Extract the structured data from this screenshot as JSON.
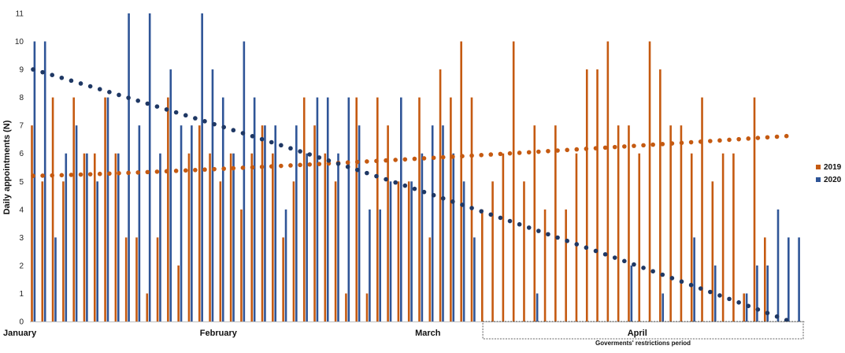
{
  "chart_data": {
    "type": "bar",
    "ylabel": "Daily appointments (N)",
    "ylim": [
      0,
      11
    ],
    "yticks": [
      "0",
      "1",
      "2",
      "3",
      "4",
      "5",
      "6",
      "7",
      "8",
      "9",
      "10",
      "11"
    ],
    "grid": false,
    "legend_placement": "right",
    "months": [
      {
        "label": "January",
        "day": 0
      },
      {
        "label": "February",
        "day": 18
      },
      {
        "label": "March",
        "day": 38
      },
      {
        "label": "April",
        "day": 58
      }
    ],
    "annotation": {
      "label": "Goverments' restrictions period",
      "from_day": 44,
      "to_day": 74
    },
    "series": [
      {
        "name": "2019",
        "color": "#C55A11",
        "values": [
          7,
          5,
          8,
          5,
          8,
          6,
          6,
          8,
          6,
          3,
          3,
          1,
          3,
          8,
          2,
          6,
          7,
          6,
          5,
          6,
          4,
          6,
          7,
          6,
          3,
          5,
          8,
          7,
          6,
          5,
          1,
          8,
          1,
          8,
          7,
          5,
          5,
          8,
          3,
          9,
          8,
          10,
          8,
          4,
          5,
          6,
          10,
          5,
          7,
          4,
          7,
          4,
          6,
          9,
          9,
          10,
          7,
          7,
          6,
          10,
          9,
          7,
          7,
          6,
          8,
          5,
          6,
          6,
          1,
          8,
          3
        ]
      },
      {
        "name": "2020",
        "color": "#2F5597",
        "values": [
          10,
          10,
          3,
          6,
          7,
          6,
          5,
          8,
          6,
          11,
          7,
          11,
          6,
          9,
          7,
          7,
          11,
          9,
          8,
          6,
          10,
          8,
          7,
          7,
          4,
          7,
          6,
          8,
          8,
          6,
          8,
          7,
          4,
          4,
          5,
          8,
          5,
          6,
          7,
          7,
          6,
          5,
          3,
          0,
          0,
          0,
          0,
          0,
          1,
          0,
          0,
          0,
          0,
          0,
          0,
          0,
          0,
          2,
          0,
          0,
          1,
          0,
          0,
          3,
          0,
          2,
          0,
          0,
          1,
          2,
          2,
          4,
          3,
          3
        ]
      }
    ],
    "trendlines": [
      {
        "series": "2019",
        "color": "#C55A11",
        "start": 5.2,
        "end": 6.62
      },
      {
        "series": "2020",
        "color": "#1F3864",
        "start": 9.0,
        "end": 0.05
      }
    ]
  }
}
